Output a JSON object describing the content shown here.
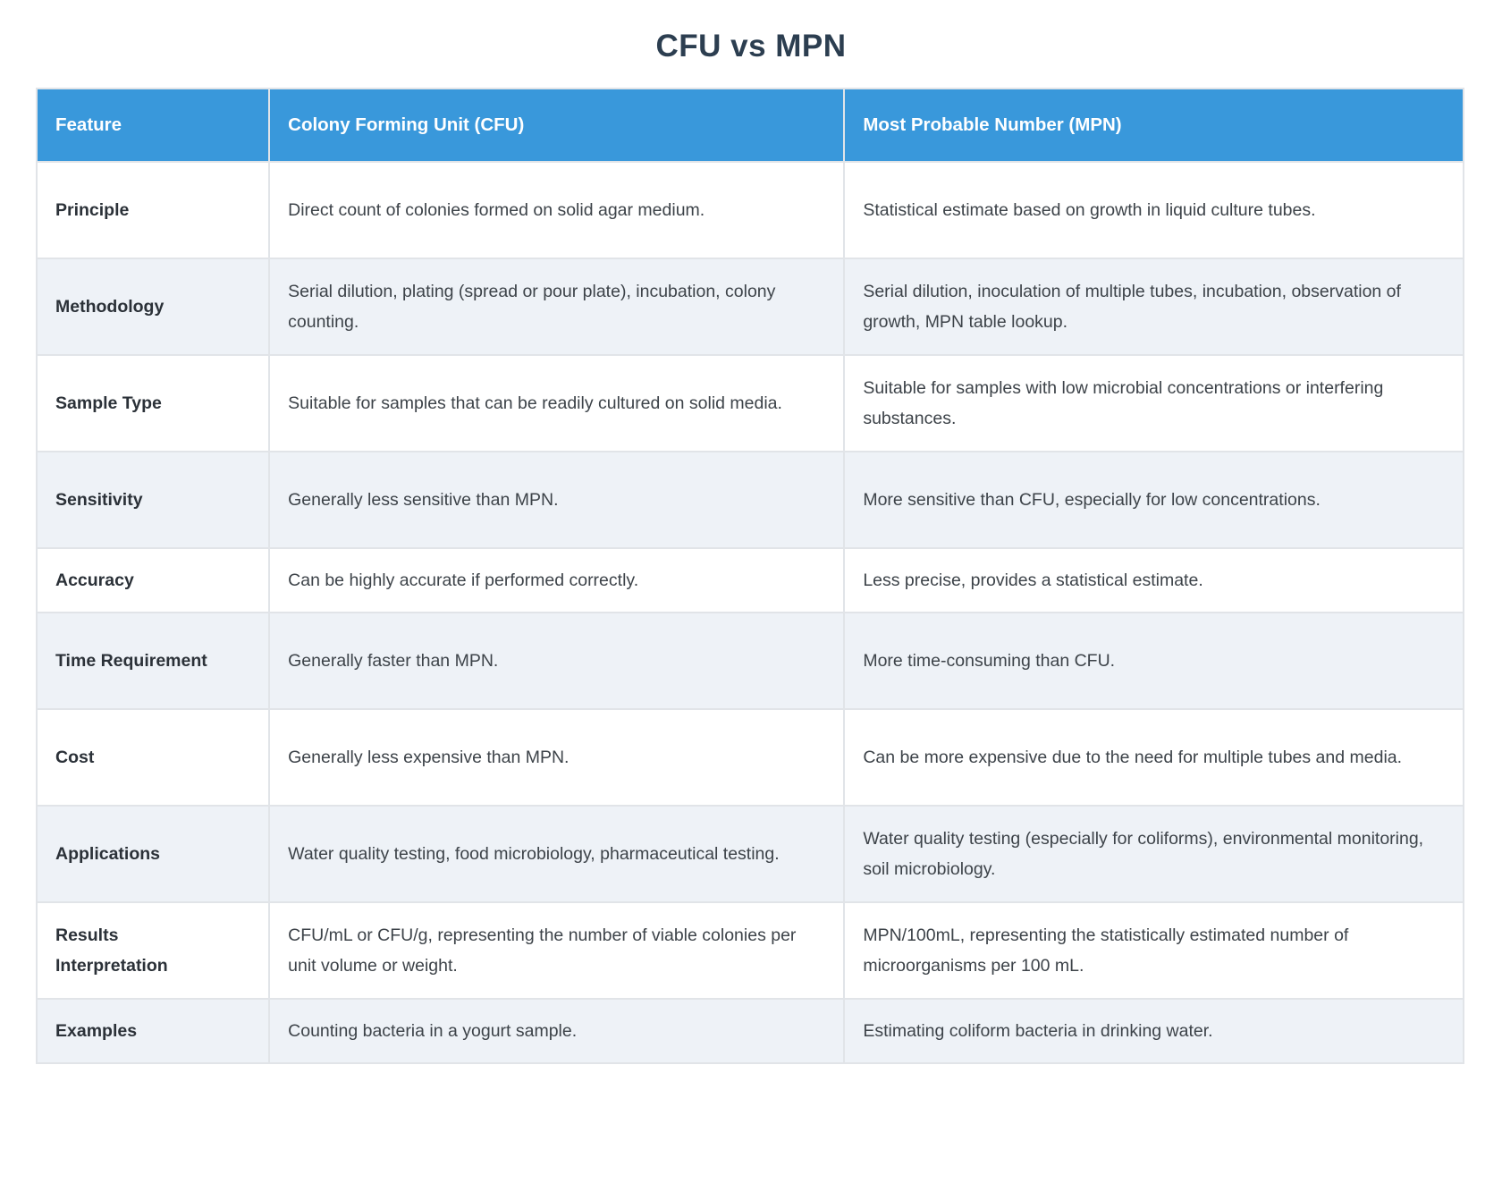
{
  "title": "CFU vs MPN",
  "colors": {
    "header_bg": "#3998db",
    "header_text": "#ffffff",
    "alt_row_bg": "#eef2f7",
    "border": "#e1e4e8",
    "title_text": "#2c3e50",
    "body_text": "#3d4349"
  },
  "table": {
    "headers": [
      "Feature",
      "Colony Forming Unit (CFU)",
      "Most Probable Number (MPN)"
    ],
    "rows": [
      {
        "feature": "Principle",
        "cfu": "Direct count of colonies formed on solid agar medium.",
        "mpn": "Statistical estimate based on growth in liquid culture tubes."
      },
      {
        "feature": "Methodology",
        "cfu": "Serial dilution, plating (spread or pour plate), incubation, colony counting.",
        "mpn": "Serial dilution, inoculation of multiple tubes, incubation, observation of growth, MPN table lookup."
      },
      {
        "feature": "Sample Type",
        "cfu": "Suitable for samples that can be readily cultured on solid media.",
        "mpn": "Suitable for samples with low microbial concentrations or interfering substances."
      },
      {
        "feature": "Sensitivity",
        "cfu": "Generally less sensitive than MPN.",
        "mpn": "More sensitive than CFU, especially for low concentrations."
      },
      {
        "feature": "Accuracy",
        "cfu": "Can be highly accurate if performed correctly.",
        "mpn": "Less precise, provides a statistical estimate."
      },
      {
        "feature": "Time Requirement",
        "cfu": "Generally faster than MPN.",
        "mpn": "More time-consuming than CFU."
      },
      {
        "feature": "Cost",
        "cfu": "Generally less expensive than MPN.",
        "mpn": "Can be more expensive due to the need for multiple tubes and media."
      },
      {
        "feature": "Applications",
        "cfu": "Water quality testing, food microbiology, pharmaceutical testing.",
        "mpn": "Water quality testing (especially for coliforms), environmental monitoring, soil microbiology."
      },
      {
        "feature": "Results Interpretation",
        "cfu": "CFU/mL or CFU/g, representing the number of viable colonies per unit volume or weight.",
        "mpn": "MPN/100mL, representing the statistically estimated number of microorganisms per 100 mL."
      },
      {
        "feature": "Examples",
        "cfu": "Counting bacteria in a yogurt sample.",
        "mpn": "Estimating coliform bacteria in drinking water."
      }
    ]
  }
}
